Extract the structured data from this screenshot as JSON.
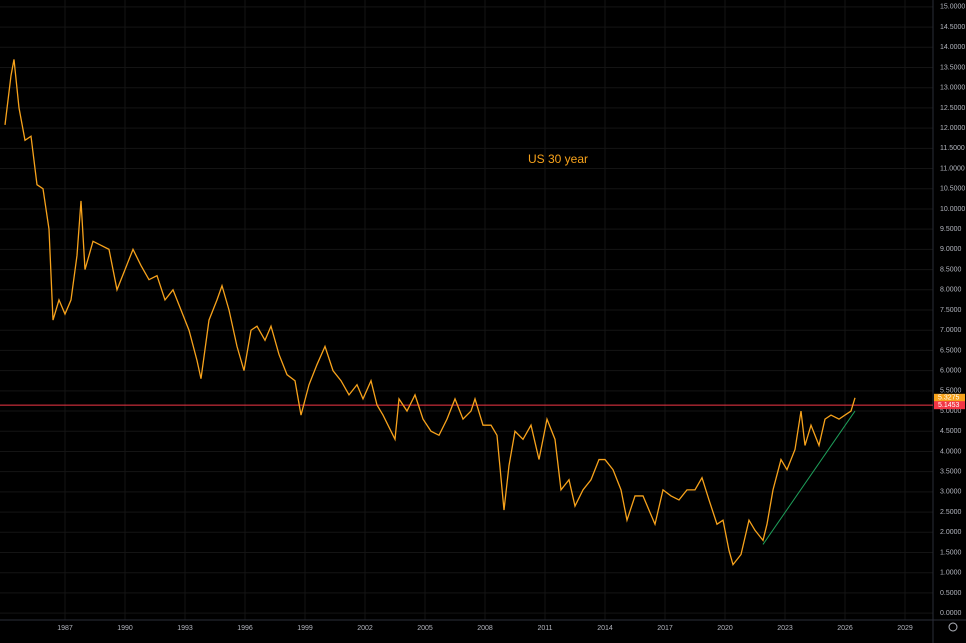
{
  "chart_data": {
    "type": "line",
    "title": "US 30 year",
    "title_color": "#f7a21b",
    "x": [
      1984.0,
      1984.3,
      1984.45,
      1984.7,
      1985.0,
      1985.3,
      1985.6,
      1985.9,
      1986.2,
      1986.4,
      1986.7,
      1987.0,
      1987.3,
      1987.6,
      1987.8,
      1988.0,
      1988.4,
      1988.8,
      1989.2,
      1989.6,
      1990.0,
      1990.4,
      1990.8,
      1991.2,
      1991.6,
      1992.0,
      1992.4,
      1992.8,
      1993.2,
      1993.6,
      1993.8,
      1994.2,
      1994.6,
      1994.85,
      1995.2,
      1995.6,
      1995.95,
      1996.3,
      1996.6,
      1997.0,
      1997.3,
      1997.7,
      1998.1,
      1998.5,
      1998.8,
      1999.2,
      1999.6,
      2000.0,
      2000.4,
      2000.8,
      2001.2,
      2001.6,
      2001.9,
      2002.3,
      2002.6,
      2002.9,
      2003.5,
      2003.7,
      2004.1,
      2004.5,
      2004.9,
      2005.3,
      2005.7,
      2006.1,
      2006.5,
      2006.9,
      2007.3,
      2007.5,
      2007.9,
      2008.3,
      2008.6,
      2008.95,
      2009.2,
      2009.5,
      2009.9,
      2010.3,
      2010.7,
      2011.1,
      2011.5,
      2011.8,
      2012.2,
      2012.5,
      2012.9,
      2013.3,
      2013.7,
      2014.0,
      2014.4,
      2014.8,
      2015.1,
      2015.5,
      2015.9,
      2016.2,
      2016.5,
      2016.9,
      2017.3,
      2017.7,
      2018.1,
      2018.5,
      2018.85,
      2019.2,
      2019.6,
      2019.9,
      2020.2,
      2020.4,
      2020.8,
      2021.2,
      2021.5,
      2021.9,
      2022.1,
      2022.4,
      2022.8,
      2023.1,
      2023.5,
      2023.8,
      2024.0,
      2024.3,
      2024.7,
      2025.0,
      2025.3,
      2025.7,
      2026.0,
      2026.3,
      2026.5
    ],
    "series": [
      {
        "name": "US 30 year",
        "color": "#f7a21b",
        "values": [
          12.08,
          13.3,
          13.7,
          12.5,
          11.7,
          11.8,
          10.6,
          10.5,
          9.5,
          7.25,
          7.75,
          7.4,
          7.75,
          8.85,
          10.2,
          8.5,
          9.2,
          9.1,
          9.0,
          8.0,
          8.5,
          9.0,
          8.6,
          8.25,
          8.35,
          7.75,
          8.0,
          7.5,
          7.0,
          6.25,
          5.8,
          7.25,
          7.75,
          8.1,
          7.5,
          6.6,
          6.0,
          7.0,
          7.1,
          6.75,
          7.1,
          6.4,
          5.9,
          5.75,
          4.9,
          5.65,
          6.15,
          6.6,
          6.0,
          5.75,
          5.4,
          5.65,
          5.3,
          5.75,
          5.15,
          4.9,
          4.3,
          5.3,
          5.0,
          5.4,
          4.8,
          4.5,
          4.4,
          4.8,
          5.3,
          4.8,
          5.0,
          5.3,
          4.65,
          4.65,
          4.4,
          2.55,
          3.65,
          4.5,
          4.3,
          4.65,
          3.8,
          4.8,
          4.3,
          3.05,
          3.3,
          2.65,
          3.05,
          3.3,
          3.8,
          3.8,
          3.55,
          3.05,
          2.3,
          2.9,
          2.9,
          2.55,
          2.2,
          3.05,
          2.9,
          2.8,
          3.05,
          3.05,
          3.35,
          2.8,
          2.2,
          2.3,
          1.55,
          1.2,
          1.45,
          2.3,
          2.05,
          1.8,
          2.2,
          3.05,
          3.8,
          3.55,
          4.05,
          5.0,
          4.15,
          4.65,
          4.15,
          4.8,
          4.9,
          4.8,
          4.9,
          5.0,
          5.3275
        ]
      }
    ],
    "trendline": {
      "color": "#1e9e5a",
      "x": [
        2021.9,
        2026.5
      ],
      "y": [
        1.7,
        5.0
      ]
    },
    "price_labels": [
      {
        "value": 5.3275,
        "label": "5.3275",
        "color": "#f7a21b",
        "line": false
      },
      {
        "value": 5.1453,
        "label": "5.1453",
        "color": "#f23645",
        "line": true
      }
    ],
    "xlim": [
      1983.75,
      2030.4
    ],
    "xticks": [
      1987,
      1990,
      1993,
      1996,
      1999,
      2002,
      2005,
      2008,
      2011,
      2014,
      2017,
      2020,
      2023,
      2026,
      2029
    ],
    "ylim": [
      -0.17,
      15.17
    ],
    "yticks": [
      {
        "value": 0,
        "label": "0.0000"
      },
      {
        "value": 0.5,
        "label": "0.5000"
      },
      {
        "value": 1,
        "label": "1.0000"
      },
      {
        "value": 1.5,
        "label": "1.5000"
      },
      {
        "value": 2,
        "label": "2.0000"
      },
      {
        "value": 2.5,
        "label": "2.5000"
      },
      {
        "value": 3,
        "label": "3.0000"
      },
      {
        "value": 3.5,
        "label": "3.5000"
      },
      {
        "value": 4,
        "label": "4.0000"
      },
      {
        "value": 4.5,
        "label": "4.5000"
      },
      {
        "value": 5,
        "label": "5.0000"
      },
      {
        "value": 5.5,
        "label": "5.5000"
      },
      {
        "value": 6,
        "label": "6.0000"
      },
      {
        "value": 6.5,
        "label": "6.5000"
      },
      {
        "value": 7,
        "label": "7.0000"
      },
      {
        "value": 7.5,
        "label": "7.5000"
      },
      {
        "value": 8,
        "label": "8.0000"
      },
      {
        "value": 8.5,
        "label": "8.5000"
      },
      {
        "value": 9,
        "label": "9.0000"
      },
      {
        "value": 9.5,
        "label": "9.5000"
      },
      {
        "value": 10,
        "label": "10.0000"
      },
      {
        "value": 10.5,
        "label": "10.5000"
      },
      {
        "value": 11,
        "label": "11.0000"
      },
      {
        "value": 11.5,
        "label": "11.5000"
      },
      {
        "value": 12,
        "label": "12.0000"
      },
      {
        "value": 12.5,
        "label": "12.5000"
      },
      {
        "value": 13,
        "label": "13.0000"
      },
      {
        "value": 13.5,
        "label": "13.5000"
      },
      {
        "value": 14,
        "label": "14.0000"
      },
      {
        "value": 14.5,
        "label": "14.5000"
      },
      {
        "value": 15,
        "label": "15.0000"
      }
    ],
    "grid": true
  }
}
